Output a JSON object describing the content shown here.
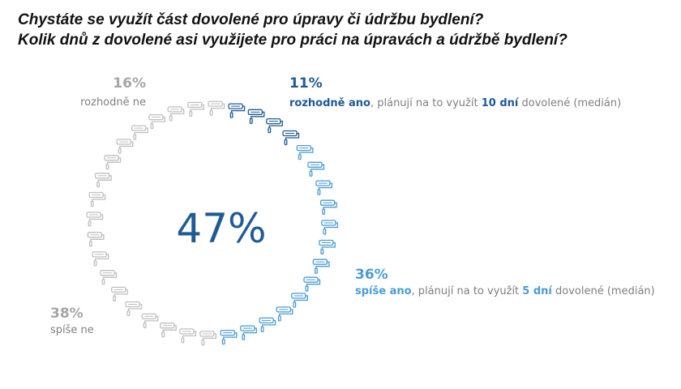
{
  "title": {
    "line1": "Chystáte se využít část dovolené pro úpravy či údržbu bydlení?",
    "line2": "Kolik dnů z dovolené asi využijete pro práci na úpravách a údržbě bydlení?"
  },
  "center_value": "47%",
  "categories": {
    "rozhodne_ano": {
      "value": "11%",
      "label": "rozhodně ano",
      "text_before": ", plánují na to využít ",
      "days": "10 dní",
      "text_after": " dovolené (medián)"
    },
    "spise_ano": {
      "value": "36%",
      "label": "spíše ano",
      "text_before": ", plánují na to využít ",
      "days": "5 dní",
      "text_after": " dovolené (medián)"
    },
    "rozhodne_ne": {
      "value": "16%",
      "label": "rozhodně ne"
    },
    "spise_ne": {
      "value": "38%",
      "label": "spíše ne"
    }
  },
  "chart_data": {
    "type": "pie",
    "style": "ring of paint-roller icons",
    "center_label": "47%",
    "slices": [
      {
        "name": "rozhodně ano",
        "value": 11,
        "color": "#1f5a96"
      },
      {
        "name": "spíše ano",
        "value": 36,
        "color": "#4a9bd6"
      },
      {
        "name": "spíše ne",
        "value": 38,
        "color": "#bfbfbf"
      },
      {
        "name": "rozhodně ne",
        "value": 16,
        "color": "#bfbfbf"
      }
    ],
    "icon_count": 36,
    "icon_counts": [
      4,
      13,
      14,
      5
    ],
    "annotations": [
      "rozhodně ano, plánují na to využít 10 dní dovolené (medián)",
      "spíše ano, plánují na to využít 5 dní dovolené (medián)"
    ]
  },
  "colors": {
    "dark_blue": "#1f5a96",
    "light_blue": "#4a9bd6",
    "gray": "#bfbfbf",
    "label_gray": "#a6a6a6",
    "text_gray": "#7f7f7f"
  },
  "icon": "paint-roller-icon"
}
